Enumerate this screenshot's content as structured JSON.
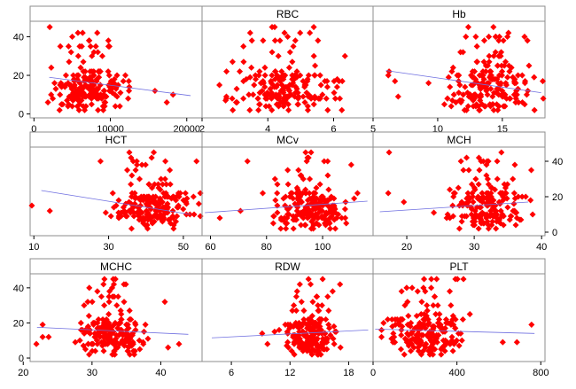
{
  "chart_data": {
    "type": "scatter",
    "layout": "3x3 matrix",
    "y_axis": {
      "range": [
        -2,
        48
      ],
      "ticks": [
        0,
        20,
        40
      ]
    },
    "series_color": "#ff0000",
    "fit_line_color": "#6f6fe0",
    "panels": [
      {
        "label": "",
        "xlim": [
          -500,
          22000
        ],
        "xticks": [
          {
            "v": 0,
            "t": "0"
          },
          {
            "v": 10000,
            "t": "10000"
          },
          {
            "v": 20000,
            "t": "20000"
          }
        ],
        "fit": [
          [
            2000,
            19
          ],
          [
            20500,
            9.5
          ]
        ],
        "center": 7200,
        "spread": 2400,
        "n": 200,
        "seed": 11
      },
      {
        "label": "RBC",
        "xlim": [
          2,
          7.2
        ],
        "xticks": [
          {
            "v": 2,
            "t": "2"
          },
          {
            "v": 4,
            "t": "4"
          },
          {
            "v": 6,
            "t": "6"
          }
        ],
        "fit": null,
        "center": 4.5,
        "spread": 0.7,
        "n": 200,
        "seed": 23
      },
      {
        "label": "Hb",
        "xlim": [
          5,
          18.3
        ],
        "xticks": [
          {
            "v": 5,
            "t": "5"
          },
          {
            "v": 10,
            "t": "10"
          },
          {
            "v": 15,
            "t": "15"
          }
        ],
        "fit": [
          [
            6,
            22.5
          ],
          [
            18,
            11
          ]
        ],
        "center": 14,
        "spread": 1.7,
        "n": 200,
        "seed": 37
      },
      {
        "label": "HCT",
        "xlim": [
          9,
          55
        ],
        "xticks": [
          {
            "v": 10,
            "t": "10"
          },
          {
            "v": 30,
            "t": "30"
          },
          {
            "v": 50,
            "t": "50"
          }
        ],
        "fit": [
          [
            12,
            23.5
          ],
          [
            52,
            10
          ]
        ],
        "center": 42,
        "spread": 5,
        "n": 200,
        "seed": 41
      },
      {
        "label": "MCv",
        "xlim": [
          57,
          118
        ],
        "xticks": [
          {
            "v": 60,
            "t": "60"
          },
          {
            "v": 80,
            "t": "80"
          },
          {
            "v": 100,
            "t": "100"
          }
        ],
        "fit": [
          [
            58,
            11
          ],
          [
            116,
            17.5
          ]
        ],
        "center": 95,
        "spread": 7,
        "n": 200,
        "seed": 53
      },
      {
        "label": "MCH",
        "xlim": [
          15,
          40.5
        ],
        "xticks": [
          {
            "v": 20,
            "t": "20"
          },
          {
            "v": 30,
            "t": "30"
          },
          {
            "v": 40,
            "t": "40"
          }
        ],
        "fit": [
          [
            16,
            11.5
          ],
          [
            38,
            17
          ]
        ],
        "center": 32,
        "spread": 2.5,
        "n": 200,
        "seed": 67
      },
      {
        "label": "MCHC",
        "xlim": [
          21,
          46
        ],
        "xticks": [
          {
            "v": 20,
            "t": "20"
          },
          {
            "v": 30,
            "t": "30"
          },
          {
            "v": 40,
            "t": "40"
          }
        ],
        "fit": [
          [
            22,
            17.5
          ],
          [
            44,
            13.5
          ]
        ],
        "center": 33,
        "spread": 2.2,
        "n": 200,
        "seed": 79
      },
      {
        "label": "RDW",
        "xlim": [
          3,
          20.5
        ],
        "xticks": [
          {
            "v": 6,
            "t": "6"
          },
          {
            "v": 12,
            "t": "12"
          },
          {
            "v": 18,
            "t": "18"
          }
        ],
        "fit": [
          [
            4,
            11.5
          ],
          [
            20,
            16
          ]
        ],
        "center": 14,
        "spread": 1.2,
        "n": 200,
        "seed": 83
      },
      {
        "label": "PLT",
        "xlim": [
          0,
          820
        ],
        "xticks": [
          {
            "v": 0,
            "t": "0"
          },
          {
            "v": 400,
            "t": "400"
          },
          {
            "v": 800,
            "t": "800"
          }
        ],
        "fit": [
          [
            10,
            16.5
          ],
          [
            770,
            14
          ]
        ],
        "center": 250,
        "spread": 90,
        "n": 200,
        "seed": 97
      }
    ]
  }
}
